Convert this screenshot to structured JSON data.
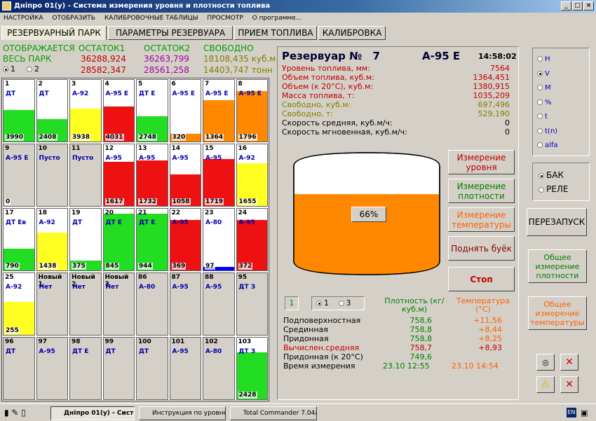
{
  "window": {
    "title": "Дніпро 01(у) - Система измерения уровня и плотности топлива"
  },
  "menu": [
    "НАСТРОЙКА",
    "ОТОБРАЗИТЬ",
    "КАЛИБРОВОЧНЫЕ ТАБЛИЦЫ",
    "ПРОСМОТР",
    "О программе..."
  ],
  "tabs": [
    "РЕЗЕРВУАРНЫЙ ПАРК",
    "ПАРАМЕТРЫ РЕЗЕРВУАРА",
    "ПРИЕМ ТОПЛИВА",
    "КАЛИБРОВКА"
  ],
  "summary": {
    "displayed_label": "ОТОБРАЖАЕТСЯ",
    "all_park_label": "ВЕСЬ ПАРК",
    "radio1": "1",
    "radio2": "2",
    "ostatok1_label": "ОСТАТОК1",
    "ostatok1_v1": "36288,924",
    "ostatok1_v2": "28582,347",
    "ostatok2_label": "ОСТАТОК2",
    "ostatok2_v1": "36263,799",
    "ostatok2_v2": "28561,258",
    "free_label": "СВОБОДНО",
    "free_v1": "18108,435",
    "free_u1": "куб.м",
    "free_v2": "14403,747",
    "free_u2": "тонн"
  },
  "tanks": [
    {
      "num": "1",
      "fuel": "ДТ",
      "vol": "3990",
      "level": 0.5,
      "color": "#22dd22"
    },
    {
      "num": "2",
      "fuel": "ДТ",
      "vol": "2408",
      "level": 0.36,
      "color": "#22dd22"
    },
    {
      "num": "3",
      "fuel": "А-92",
      "vol": "3938",
      "level": 0.52,
      "color": "#ffff22"
    },
    {
      "num": "4",
      "fuel": "А-95 Е",
      "vol": "4031",
      "level": 0.55,
      "color": "#ee1111"
    },
    {
      "num": "5",
      "fuel": "ДТ Е",
      "vol": "2748",
      "level": 0.4,
      "color": "#22dd22"
    },
    {
      "num": "6",
      "fuel": "А-95 Е",
      "vol": "320",
      "level": 0.12,
      "color": "#ff8800"
    },
    {
      "num": "7",
      "fuel": "А-95 Е",
      "vol": "1364",
      "level": 0.66,
      "color": "#ff8800"
    },
    {
      "num": "8",
      "fuel": "А-95 Е",
      "vol": "1796",
      "level": 0.8,
      "color": "#ff8800"
    },
    {
      "num": "9",
      "fuel": "А-95 Е",
      "vol": "0",
      "level": 0,
      "color": "#d4d0c8"
    },
    {
      "num": "10",
      "fuel": "Пусто",
      "vol": "",
      "level": 0,
      "color": "#d4d0c8"
    },
    {
      "num": "11",
      "fuel": "Пусто",
      "vol": "",
      "level": 0,
      "color": "#d4d0c8"
    },
    {
      "num": "12",
      "fuel": "А-95",
      "vol": "1617",
      "level": 0.7,
      "color": "#ee1111"
    },
    {
      "num": "13",
      "fuel": "А-95",
      "vol": "1732",
      "level": 0.72,
      "color": "#ee1111"
    },
    {
      "num": "14",
      "fuel": "А-95",
      "vol": "1058",
      "level": 0.5,
      "color": "#ee1111"
    },
    {
      "num": "15",
      "fuel": "А-95",
      "vol": "1719",
      "level": 0.74,
      "color": "#ee1111"
    },
    {
      "num": "16",
      "fuel": "А-92",
      "vol": "1655",
      "level": 0.68,
      "color": "#ffff22"
    },
    {
      "num": "17",
      "fuel": "ДТ Ев",
      "vol": "790",
      "level": 0.34,
      "color": "#22dd22"
    },
    {
      "num": "18",
      "fuel": "А-92",
      "vol": "1438",
      "level": 0.6,
      "color": "#ffff22"
    },
    {
      "num": "19",
      "fuel": "ДТ",
      "vol": "375",
      "level": 0.16,
      "color": "#22dd22"
    },
    {
      "num": "20",
      "fuel": "ДТ Е",
      "vol": "845",
      "level": 0.9,
      "color": "#22dd22"
    },
    {
      "num": "21",
      "fuel": "ДТ Е",
      "vol": "944",
      "level": 0.9,
      "color": "#22dd22"
    },
    {
      "num": "22",
      "fuel": "А-95",
      "vol": "369",
      "level": 0.8,
      "color": "#ee1111"
    },
    {
      "num": "23",
      "fuel": "А-80",
      "vol": "97",
      "level": 0.06,
      "color": "#0000ff"
    },
    {
      "num": "24",
      "fuel": "А-95",
      "vol": "372",
      "level": 0.8,
      "color": "#ee1111"
    },
    {
      "num": "25",
      "fuel": "А-92",
      "vol": "255",
      "level": 0.52,
      "color": "#ffff22"
    },
    {
      "num": "Новый 1",
      "fuel": "Нет",
      "vol": "",
      "level": 0,
      "color": "#d4d0c8"
    },
    {
      "num": "Новый 2",
      "fuel": "Нет",
      "vol": "",
      "level": 0,
      "color": "#d4d0c8"
    },
    {
      "num": "Новый 3",
      "fuel": "Нет",
      "vol": "",
      "level": 0,
      "color": "#d4d0c8"
    },
    {
      "num": "86",
      "fuel": "А-80",
      "vol": "",
      "level": 0,
      "color": "#d4d0c8"
    },
    {
      "num": "87",
      "fuel": "А-95",
      "vol": "",
      "level": 0,
      "color": "#d4d0c8"
    },
    {
      "num": "88",
      "fuel": "А-95",
      "vol": "",
      "level": 0,
      "color": "#d4d0c8"
    },
    {
      "num": "95",
      "fuel": "ДТ З",
      "vol": "",
      "level": 0,
      "color": "#d4d0c8"
    },
    {
      "num": "96",
      "fuel": "ДТ",
      "vol": "",
      "level": 0,
      "color": "#d4d0c8"
    },
    {
      "num": "97",
      "fuel": "А-95",
      "vol": "",
      "level": 0,
      "color": "#d4d0c8"
    },
    {
      "num": "98",
      "fuel": "ДТ Е",
      "vol": "",
      "level": 0,
      "color": "#d4d0c8"
    },
    {
      "num": "99",
      "fuel": "ДТ",
      "vol": "",
      "level": 0,
      "color": "#d4d0c8"
    },
    {
      "num": "100",
      "fuel": "ДТ",
      "vol": "",
      "level": 0,
      "color": "#d4d0c8"
    },
    {
      "num": "101",
      "fuel": "А-95",
      "vol": "",
      "level": 0,
      "color": "#d4d0c8"
    },
    {
      "num": "102",
      "fuel": "А-80",
      "vol": "",
      "level": 0,
      "color": "#d4d0c8"
    },
    {
      "num": "103",
      "fuel": "ДТ З",
      "vol": "2428",
      "level": 0.74,
      "color": "#22dd22"
    }
  ],
  "panel": {
    "title": "Резервуар №",
    "tank_no": "7",
    "fuel": "А-95 Е",
    "time": "14:58:02",
    "rows": [
      {
        "label": "Уровень топлива, мм:",
        "value": "7564",
        "color": "#c00000"
      },
      {
        "label": "Объем топлива, куб.м:",
        "value": "1364,451",
        "color": "#c00000"
      },
      {
        "label": "Объем (к 20°С), куб.м:",
        "value": "1380,915",
        "color": "#c00000"
      },
      {
        "label": "Масса топлива, т:",
        "value": "1035,209",
        "color": "#c00000"
      },
      {
        "label": "Свободно, куб.м:",
        "value": "697,496",
        "color": "#808000"
      },
      {
        "label": "Свободно, т:",
        "value": "529,190",
        "color": "#808000"
      },
      {
        "label": "Скорость средняя, куб.м/ч:",
        "value": "0",
        "color": "#000000"
      },
      {
        "label": "Скорость мгновенная, куб.м/ч:",
        "value": "0",
        "color": "#000000"
      }
    ],
    "fill_percent": "66%",
    "fill_level": 0.66,
    "buttons": {
      "level": "Измерение уровня",
      "density": "Измерение плотности",
      "temperature": "Измерение температуры",
      "float": "Поднять буёк",
      "stop": "Стоп"
    },
    "probe_box": "1",
    "probe_r1": "1",
    "probe_r3": "3",
    "density_header": "Плотность (кг/куб.м)",
    "temp_header": "Температура (°С)",
    "measures": [
      {
        "label": "Подповерхностная",
        "density": "758,6",
        "temp": "+11,56",
        "color": "#000000"
      },
      {
        "label": "Срединная",
        "density": "758,8",
        "temp": "+8,44",
        "color": "#000000"
      },
      {
        "label": "Придонная",
        "density": "758,8",
        "temp": "+8,25",
        "color": "#000000"
      },
      {
        "label": "Вычислен.средняя",
        "density": "758,7",
        "temp": "+8,93",
        "color": "#c00000"
      },
      {
        "label": "Придонная (к 20°С)",
        "density": "749,6",
        "temp": "",
        "color": "#000000"
      }
    ],
    "time_label": "Время измерения",
    "time_density": "23.10 12:55",
    "time_temp": "23.10 14:54"
  },
  "side": {
    "units": [
      "H",
      "V",
      "M",
      "%",
      "t",
      "t(n)",
      "alfa"
    ],
    "unit_selected": 1,
    "bak": "БАК",
    "rele": "РЕЛЕ",
    "restart": "ПЕРЕЗАПУСК",
    "general_density": "Общее измерение плотности",
    "general_temp": "Общее измерение температуры"
  },
  "taskbar": {
    "tasks": [
      "Дніпро 01(у) - Систе...",
      "Инструкция по уровне...",
      "Total Commander 7.04a ..."
    ],
    "lang": "EN"
  }
}
